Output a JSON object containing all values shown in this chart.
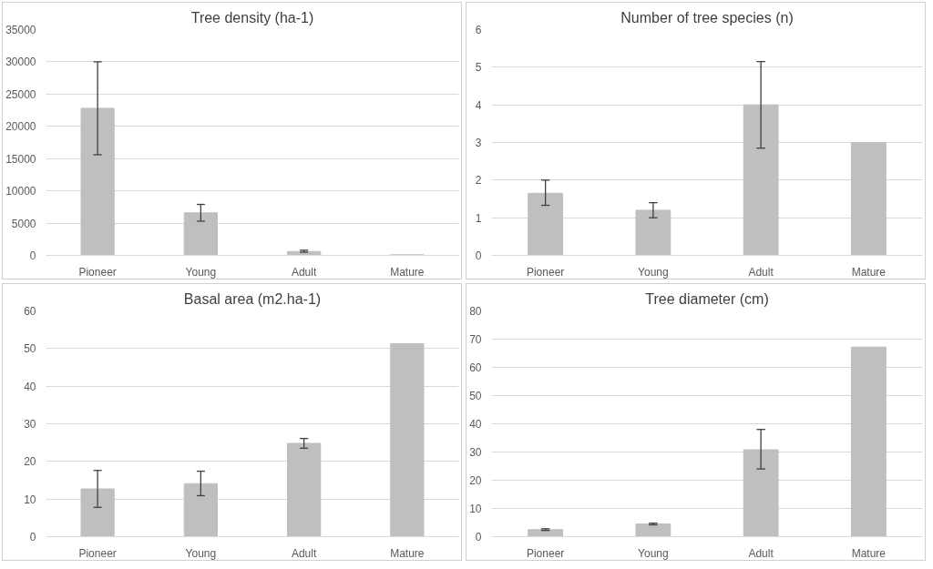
{
  "chart_data": [
    {
      "type": "bar",
      "title": "Tree density (ha-1)",
      "categories": [
        "Pioneer",
        "Young",
        "Adult",
        "Mature"
      ],
      "values": [
        22800,
        6600,
        600,
        100
      ],
      "errors": [
        [
          15600,
          30000
        ],
        [
          5300,
          7900
        ],
        [
          500,
          800
        ],
        null
      ],
      "color": "#bfbfbf",
      "ylim": [
        0,
        35000
      ],
      "yticks": [
        0,
        5000,
        10000,
        15000,
        20000,
        25000,
        30000,
        35000
      ],
      "grid": "y"
    },
    {
      "type": "bar",
      "title": "Number of tree species (n)",
      "categories": [
        "Pioneer",
        "Young",
        "Adult",
        "Mature"
      ],
      "values": [
        1.65,
        1.2,
        4.0,
        3.0
      ],
      "errors": [
        [
          1.33,
          2.0
        ],
        [
          1.0,
          1.4
        ],
        [
          2.85,
          5.15
        ],
        null
      ],
      "color": "#bfbfbf",
      "ylim": [
        0,
        6
      ],
      "yticks": [
        0,
        1,
        2,
        3,
        4,
        5,
        6
      ],
      "grid": "y"
    },
    {
      "type": "bar",
      "title": "Basal area (m2.ha-1)",
      "categories": [
        "Pioneer",
        "Young",
        "Adult",
        "Mature"
      ],
      "values": [
        12.7,
        14.1,
        24.8,
        51.3
      ],
      "errors": [
        [
          7.8,
          17.6
        ],
        [
          10.9,
          17.4
        ],
        [
          23.5,
          26.1
        ],
        null
      ],
      "color": "#bfbfbf",
      "ylim": [
        0,
        60
      ],
      "yticks": [
        0,
        10,
        20,
        30,
        40,
        50,
        60
      ],
      "grid": "y"
    },
    {
      "type": "bar",
      "title": "Tree diameter (cm)",
      "categories": [
        "Pioneer",
        "Young",
        "Adult",
        "Mature"
      ],
      "values": [
        2.5,
        4.5,
        30.8,
        67.2
      ],
      "errors": [
        [
          2.2,
          2.8
        ],
        [
          4.2,
          4.8
        ],
        [
          24,
          38
        ],
        null
      ],
      "color": "#bfbfbf",
      "ylim": [
        0,
        80
      ],
      "yticks": [
        0,
        10,
        20,
        30,
        40,
        50,
        60,
        70,
        80
      ],
      "grid": "y"
    }
  ]
}
